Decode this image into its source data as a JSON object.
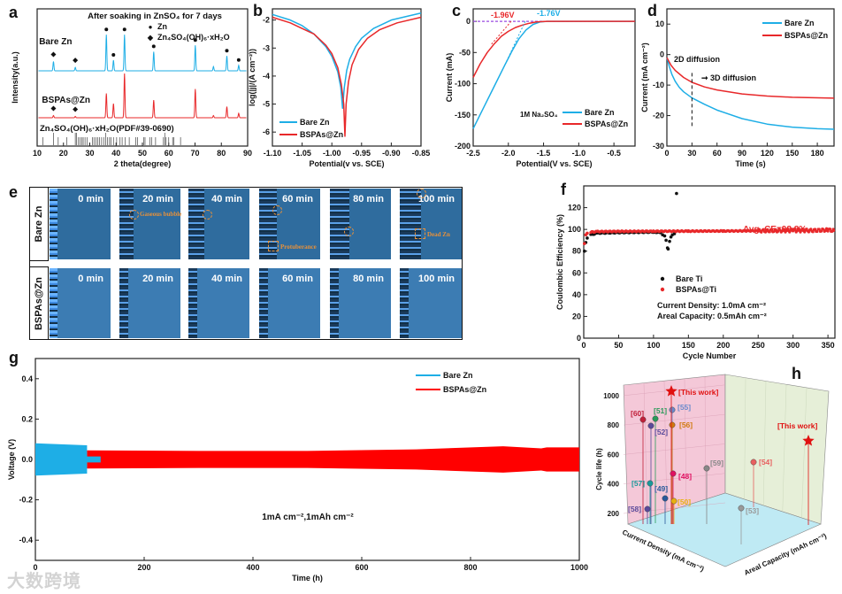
{
  "panel_letters": {
    "a": "a",
    "b": "b",
    "c": "c",
    "d": "d",
    "e": "e",
    "f": "f",
    "g": "g",
    "h": "h"
  },
  "watermark": "大数跨境",
  "chart_data": [
    {
      "id": "a",
      "type": "line",
      "title": "After soaking in ZnSO₄ for 7 days",
      "xlabel": "2 theta(degree)",
      "ylabel": "Intensity(a.u.)",
      "xlim": [
        10,
        90
      ],
      "xticks": [
        "10",
        "20",
        "30",
        "40",
        "50",
        "60",
        "70",
        "80",
        "90"
      ],
      "legend": [
        {
          "symbol": "●",
          "label": "Zn"
        },
        {
          "symbol": "◆",
          "label": "Zn₄SO₄(OH)₆·xH₂O"
        }
      ],
      "series": [
        {
          "name": "Bare Zn",
          "color": "#1eaee6",
          "peaks": [
            [
              16.2,
              0.22
            ],
            [
              24.5,
              0.08
            ],
            [
              36.3,
              0.85
            ],
            [
              39.0,
              0.25
            ],
            [
              43.2,
              0.85
            ],
            [
              54.3,
              0.45
            ],
            [
              70.1,
              0.6
            ],
            [
              77.0,
              0.1
            ],
            [
              82.1,
              0.35
            ],
            [
              86.6,
              0.13
            ]
          ]
        },
        {
          "name": "BSPAs@Zn",
          "color": "#e8282a",
          "peaks": [
            [
              16.2,
              0.05
            ],
            [
              24.5,
              0.03
            ],
            [
              36.3,
              0.55
            ],
            [
              39.0,
              0.32
            ],
            [
              43.2,
              1.0
            ],
            [
              54.3,
              0.4
            ],
            [
              70.1,
              0.65
            ],
            [
              77.0,
              0.05
            ],
            [
              82.1,
              0.25
            ],
            [
              86.6,
              0.1
            ]
          ]
        }
      ],
      "zn_peaks": [
        36.3,
        39.0,
        43.2,
        54.3,
        70.1,
        82.1,
        86.6
      ],
      "zhs_peaks": [
        16.2,
        24.5
      ],
      "reference": {
        "label": "Zn₄SO₄(OH)₆·xH₂O(PDF#39-0690)",
        "lines": [
          12.2,
          16.2,
          18.0,
          21.3,
          24.5,
          25.0,
          25.7,
          26.3,
          27.0,
          27.5,
          28.2,
          29.0,
          31.0,
          31.6,
          32.3,
          33.0,
          33.7,
          34.5,
          35.3,
          36.0,
          36.7,
          37.5,
          38.1,
          39.0,
          40.2,
          41.5,
          42.3,
          43.5,
          45.0,
          47.5,
          48.1,
          50.5,
          51.0,
          52.8,
          53.5,
          55.0,
          58.0,
          58.5,
          59.0,
          60.0,
          61.5,
          62.0,
          64.5
        ]
      }
    },
    {
      "id": "b",
      "type": "line",
      "xlabel": "Potential(v vs. SCE)",
      "ylabel": "log(|j|/(A cm⁻²))",
      "xlim": [
        -1.1,
        -0.85
      ],
      "ylim": [
        -6.5,
        -1.6
      ],
      "xticks": [
        "-1.10",
        "-1.05",
        "-1.00",
        "-0.95",
        "-0.90",
        "-0.85"
      ],
      "yticks": [
        "-2",
        "-3",
        "-4",
        "-5",
        "-6"
      ],
      "legend_position": "bottom-left",
      "series": [
        {
          "name": "Bare Zn",
          "color": "#1eaee6",
          "points": [
            [
              -1.1,
              -1.8
            ],
            [
              -1.07,
              -2.0
            ],
            [
              -1.05,
              -2.2
            ],
            [
              -1.03,
              -2.5
            ],
            [
              -1.01,
              -2.95
            ],
            [
              -1.0,
              -3.3
            ],
            [
              -0.99,
              -3.85
            ],
            [
              -0.985,
              -4.4
            ],
            [
              -0.982,
              -5.15
            ],
            [
              -0.979,
              -4.4
            ],
            [
              -0.975,
              -3.8
            ],
            [
              -0.97,
              -3.4
            ],
            [
              -0.96,
              -2.95
            ],
            [
              -0.95,
              -2.65
            ],
            [
              -0.93,
              -2.3
            ],
            [
              -0.9,
              -2.0
            ],
            [
              -0.87,
              -1.85
            ],
            [
              -0.85,
              -1.75
            ]
          ]
        },
        {
          "name": "BSPAs@Zn",
          "color": "#e8282a",
          "points": [
            [
              -1.1,
              -1.9
            ],
            [
              -1.07,
              -2.1
            ],
            [
              -1.05,
              -2.3
            ],
            [
              -1.03,
              -2.5
            ],
            [
              -1.01,
              -2.9
            ],
            [
              -1.0,
              -3.2
            ],
            [
              -0.99,
              -3.7
            ],
            [
              -0.984,
              -4.3
            ],
            [
              -0.98,
              -5.0
            ],
            [
              -0.978,
              -6.15
            ],
            [
              -0.976,
              -5.0
            ],
            [
              -0.972,
              -4.2
            ],
            [
              -0.966,
              -3.6
            ],
            [
              -0.955,
              -3.05
            ],
            [
              -0.94,
              -2.65
            ],
            [
              -0.92,
              -2.35
            ],
            [
              -0.89,
              -2.1
            ],
            [
              -0.85,
              -1.9
            ]
          ]
        }
      ]
    },
    {
      "id": "c",
      "type": "line",
      "xlabel": "Potential(V vs. SCE)",
      "ylabel": "Current (mA)",
      "xlim": [
        -2.5,
        -0.2
      ],
      "ylim": [
        -200,
        20
      ],
      "xticks": [
        "-2.5",
        "-2.0",
        "-1.5",
        "-1.0",
        "-0.5"
      ],
      "yticks": [
        "0",
        "-50",
        "-100",
        "-150",
        "-200"
      ],
      "annotations": [
        {
          "text": "-1.96V",
          "color": "#e8282a"
        },
        {
          "text": "-1.76V",
          "color": "#1eaee6"
        },
        {
          "text": "1M Na₂SO₄",
          "color": "#111111"
        }
      ],
      "onsets": [
        -1.96,
        -1.76
      ],
      "series": [
        {
          "name": "Bare Zn",
          "color": "#1eaee6",
          "points": [
            [
              -2.5,
              -172
            ],
            [
              -2.35,
              -138
            ],
            [
              -2.2,
              -104
            ],
            [
              -2.05,
              -70
            ],
            [
              -1.95,
              -48
            ],
            [
              -1.85,
              -28
            ],
            [
              -1.75,
              -14
            ],
            [
              -1.65,
              -5
            ],
            [
              -1.55,
              -1
            ],
            [
              -1.45,
              0
            ],
            [
              -0.2,
              0
            ]
          ]
        },
        {
          "name": "BSPAs@Zn",
          "color": "#e8282a",
          "points": [
            [
              -2.5,
              -90
            ],
            [
              -2.4,
              -68
            ],
            [
              -2.3,
              -50
            ],
            [
              -2.2,
              -36
            ],
            [
              -2.1,
              -24
            ],
            [
              -2.0,
              -16
            ],
            [
              -1.9,
              -10
            ],
            [
              -1.8,
              -6
            ],
            [
              -1.7,
              -3
            ],
            [
              -1.6,
              -1
            ],
            [
              -1.45,
              0
            ],
            [
              -0.2,
              0
            ]
          ]
        }
      ]
    },
    {
      "id": "d",
      "type": "line",
      "xlabel": "Time (s)",
      "ylabel": "Current (mA cm⁻²)",
      "xlim": [
        0,
        200
      ],
      "ylim": [
        -30,
        15
      ],
      "xticks": [
        "0",
        "30",
        "60",
        "90",
        "120",
        "150",
        "180"
      ],
      "yticks": [
        "10",
        "0",
        "-10",
        "-20",
        "-30"
      ],
      "annotations": [
        {
          "text": "2D diffusion"
        },
        {
          "text": "3D diffusion"
        }
      ],
      "divider_time": 30,
      "series": [
        {
          "name": "Bare Zn",
          "color": "#1eaee6",
          "points": [
            [
              0,
              -1
            ],
            [
              3,
              -4
            ],
            [
              6,
              -6.5
            ],
            [
              10,
              -8.8
            ],
            [
              15,
              -10.8
            ],
            [
              20,
              -12.2
            ],
            [
              30,
              -14.2
            ],
            [
              45,
              -16.3
            ],
            [
              60,
              -18.2
            ],
            [
              90,
              -21
            ],
            [
              120,
              -22.8
            ],
            [
              150,
              -23.8
            ],
            [
              180,
              -24.3
            ],
            [
              200,
              -24.5
            ]
          ]
        },
        {
          "name": "BSPAs@Zn",
          "color": "#e8282a",
          "points": [
            [
              0,
              -1
            ],
            [
              5,
              -3.5
            ],
            [
              10,
              -5.2
            ],
            [
              20,
              -7.5
            ],
            [
              30,
              -9.1
            ],
            [
              45,
              -10.6
            ],
            [
              60,
              -11.6
            ],
            [
              90,
              -12.9
            ],
            [
              120,
              -13.6
            ],
            [
              150,
              -14
            ],
            [
              200,
              -14.3
            ]
          ]
        }
      ]
    },
    {
      "id": "e",
      "type": "image-grid",
      "rows": [
        "Bare Zn",
        "BSPAs@Zn"
      ],
      "times": [
        "0 min",
        "20 min",
        "40 min",
        "60 min",
        "80 min",
        "100 min"
      ],
      "annotations": {
        "bubble": "Gaseous bubble",
        "protuberance": "Protuberance",
        "dead": "Dead Zn"
      }
    },
    {
      "id": "f",
      "type": "scatter",
      "xlabel": "Cycle Number",
      "ylabel": "Coulombic Efficiency (%)",
      "xlim": [
        0,
        360
      ],
      "ylim": [
        0,
        140
      ],
      "xticks": [
        "0",
        "50",
        "100",
        "150",
        "200",
        "250",
        "300",
        "350"
      ],
      "yticks": [
        "0",
        "20",
        "40",
        "60",
        "80",
        "100",
        "120"
      ],
      "annotation": "Avg. CE=98.8%",
      "conditions": [
        "Current Density: 1.0mA cm⁻²",
        "Areal Capacity: 0.5mAh cm⁻²"
      ],
      "series": [
        {
          "name": "Bare Ti",
          "color": "#111111",
          "points": [
            [
              1,
              80
            ],
            [
              3,
              88
            ],
            [
              5,
              92
            ],
            [
              10,
              95
            ],
            [
              20,
              96.5
            ],
            [
              50,
              97
            ],
            [
              100,
              97.5
            ],
            [
              110,
              97
            ],
            [
              113,
              95
            ],
            [
              116,
              94
            ],
            [
              118,
              90
            ],
            [
              120,
              83
            ],
            [
              121,
              82
            ],
            [
              123,
              89
            ],
            [
              125,
              93
            ],
            [
              127,
              95
            ],
            [
              130,
              96
            ],
            [
              133,
              133
            ]
          ]
        },
        {
          "name": "BSPAs@Ti",
          "color": "#e8282a",
          "points": [
            [
              1,
              87
            ],
            [
              3,
              95
            ],
            [
              5,
              96.5
            ],
            [
              10,
              97.5
            ],
            [
              20,
              98
            ],
            [
              50,
              98.2
            ],
            [
              100,
              98.3
            ],
            [
              150,
              98.4
            ],
            [
              200,
              98.5
            ],
            [
              250,
              98.7
            ],
            [
              300,
              99
            ],
            [
              330,
              99
            ],
            [
              350,
              99.5
            ],
            [
              358,
              99
            ]
          ]
        }
      ]
    },
    {
      "id": "g",
      "type": "area",
      "xlabel": "Time (h)",
      "ylabel": "Voltage (V)",
      "xlim": [
        0,
        1000
      ],
      "ylim": [
        -0.5,
        0.5
      ],
      "xticks": [
        "0",
        "200",
        "400",
        "600",
        "800",
        "1000"
      ],
      "yticks": [
        "0.4",
        "0.2",
        "0.0",
        "-0.2",
        "-0.4"
      ],
      "condition": "1mA cm⁻²,1mAh cm⁻²",
      "series": [
        {
          "name": "Bare Zn",
          "color": "#1eaee6",
          "envelope": [
            [
              0,
              0.08
            ],
            [
              95,
              0.07
            ],
            [
              95,
              0.015
            ],
            [
              120,
              0.015
            ]
          ]
        },
        {
          "name": "BSPAs@Zn",
          "color": "#ff0000",
          "envelope": [
            [
              95,
              0.045
            ],
            [
              300,
              0.042
            ],
            [
              500,
              0.042
            ],
            [
              700,
              0.05
            ],
            [
              860,
              0.065
            ],
            [
              930,
              0.055
            ],
            [
              940,
              0.06
            ],
            [
              1000,
              0.06
            ]
          ]
        }
      ]
    },
    {
      "id": "h",
      "type": "scatter3d",
      "xlabel": "Current Density (mA cm⁻²)",
      "ylabel": "Areal Capacity (mAh cm⁻²)",
      "zlabel": "Cycle life (h)",
      "zticks": [
        "200",
        "400",
        "600",
        "800",
        "1000"
      ],
      "points": [
        {
          "label": "[60]",
          "life": 830,
          "color": "#c0203a"
        },
        {
          "label": "[51]",
          "life": 840,
          "color": "#2a9a5a"
        },
        {
          "label": "[55]",
          "life": 890,
          "color": "#6a8acc"
        },
        {
          "label": "[52]",
          "life": 790,
          "color": "#5a4a9a"
        },
        {
          "label": "[56]",
          "life": 800,
          "color": "#d07a10"
        },
        {
          "label": "[This work]",
          "life": 1030,
          "color": "#e01010"
        },
        {
          "label": "[48]",
          "life": 460,
          "color": "#e01060"
        },
        {
          "label": "[57]",
          "life": 390,
          "color": "#1a9a9a"
        },
        {
          "label": "[49]",
          "life": 280,
          "color": "#2a5a9a"
        },
        {
          "label": "[50]",
          "life": 260,
          "color": "#e8b010"
        },
        {
          "label": "[58]",
          "life": 200,
          "color": "#5a4a9a"
        },
        {
          "label": "[59]",
          "life": 500,
          "color": "#888888"
        },
        {
          "label": "[53]",
          "life": 210,
          "color": "#999999"
        },
        {
          "label": "[54]",
          "life": 540,
          "color": "#e86060"
        },
        {
          "label": "[This work]",
          "life": 680,
          "color": "#e01010"
        }
      ]
    }
  ]
}
